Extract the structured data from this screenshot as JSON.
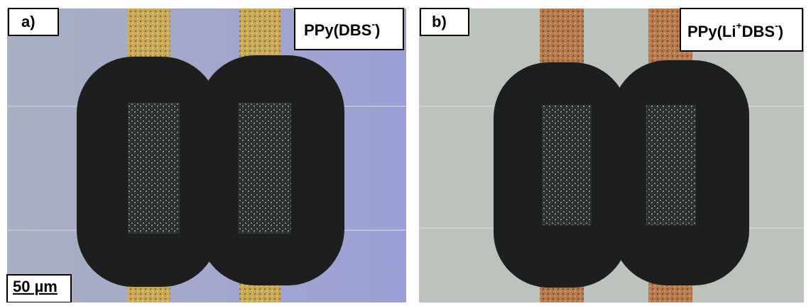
{
  "panels": [
    {
      "tag": "a)",
      "label": [
        "PPy(DBS",
        "-",
        ")"
      ]
    },
    {
      "tag": "b)",
      "label": [
        "PPy(Li",
        "+",
        "DBS",
        "-",
        ")"
      ]
    }
  ],
  "scale_bar": "50 µm"
}
